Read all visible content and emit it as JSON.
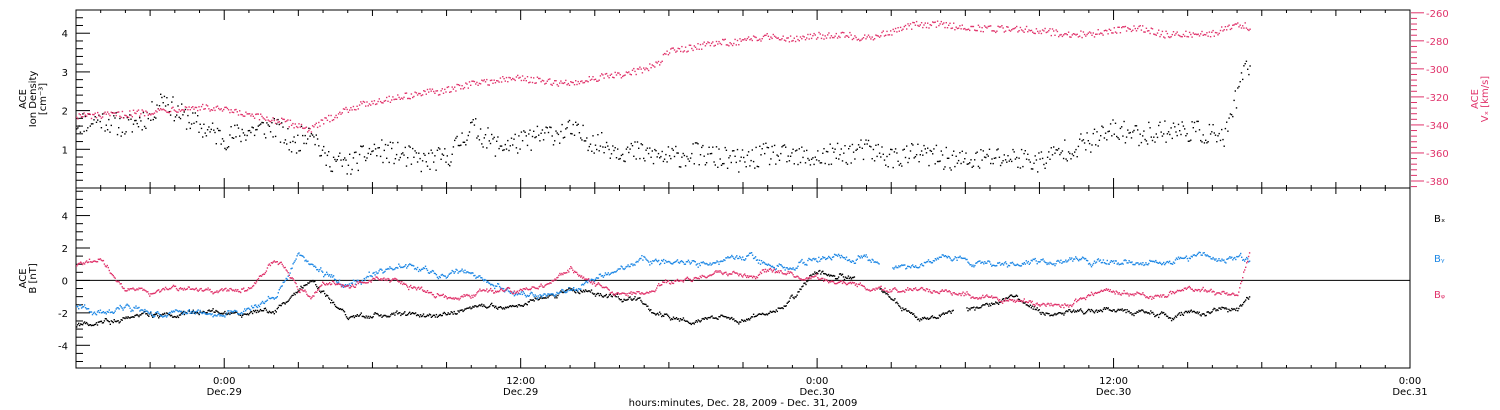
{
  "colors": {
    "density": "#000000",
    "velocity": "#e0336b",
    "bx": "#000000",
    "by": "#1e88e5",
    "bz": "#e0336b",
    "frame": "#000000"
  },
  "xaxis": {
    "title": "hours:minutes, Dec. 28, 2009 - Dec. 31, 2009",
    "range_hours": [
      -6,
      48
    ],
    "ticks": [
      {
        "t": 0,
        "time": "0:00",
        "day": "Dec.29"
      },
      {
        "t": 12,
        "time": "12:00",
        "day": "Dec.29"
      },
      {
        "t": 24,
        "time": "0:00",
        "day": "Dec.30"
      },
      {
        "t": 36,
        "time": "12:00",
        "day": "Dec.30"
      },
      {
        "t": 48,
        "time": "0:00",
        "day": "Dec.31"
      }
    ]
  },
  "chart_data": [
    {
      "type": "scatter",
      "panel": "top",
      "left_axis": {
        "label_lines": [
          "ACE",
          "Ion Density",
          "[cm⁻³]"
        ],
        "ylim": [
          0,
          4.6
        ],
        "ticks": [
          1,
          2,
          3,
          4
        ]
      },
      "right_axis": {
        "label_lines": [
          "ACE",
          "Vₓ [km/s]"
        ],
        "ylim": [
          -385,
          -258
        ],
        "ticks": [
          -380,
          -360,
          -340,
          -320,
          -300,
          -280,
          -260
        ]
      },
      "series": [
        {
          "key": "density",
          "axis": "left",
          "x": [
            -6,
            -5,
            -4,
            -3,
            -2.5,
            -2,
            -1,
            0,
            1,
            2,
            2.8,
            3.5,
            4,
            5,
            6,
            7,
            8,
            9,
            10,
            11,
            12,
            13,
            14,
            15,
            16,
            17,
            18,
            19,
            20,
            21,
            22,
            23,
            24,
            25,
            26,
            27,
            28,
            29,
            30,
            31,
            32,
            33,
            34,
            35,
            36,
            37,
            38,
            39,
            40,
            40.5,
            41,
            41.5
          ],
          "y": [
            1.7,
            1.8,
            1.6,
            1.9,
            2.4,
            2.0,
            1.6,
            1.3,
            1.5,
            1.6,
            1.1,
            1.6,
            0.8,
            0.6,
            1.0,
            0.9,
            0.7,
            0.8,
            1.6,
            1.1,
            1.2,
            1.4,
            1.5,
            1.2,
            1.0,
            0.9,
            0.8,
            0.9,
            0.8,
            0.7,
            0.9,
            0.8,
            0.8,
            0.9,
            1.0,
            0.8,
            0.9,
            0.8,
            0.7,
            0.8,
            0.8,
            0.7,
            1.0,
            1.2,
            1.5,
            1.4,
            1.5,
            1.5,
            1.4,
            1.3,
            2.5,
            3.3
          ],
          "noise": 0.3
        },
        {
          "key": "velocity",
          "axis": "right",
          "x": [
            -6,
            -5,
            -4,
            -3,
            -2,
            -1,
            0,
            1,
            2,
            3,
            3.5,
            4,
            5,
            6,
            7,
            8,
            9,
            10,
            11,
            12,
            13,
            14,
            15,
            16,
            17,
            17.5,
            18,
            19,
            20,
            21,
            22,
            23,
            24,
            25,
            26,
            27,
            28,
            29,
            30,
            31,
            32,
            33,
            34,
            35,
            36,
            37,
            38,
            39,
            40,
            41,
            41.5
          ],
          "y": [
            -333,
            -333,
            -332,
            -330,
            -328,
            -327,
            -329,
            -333,
            -336,
            -340,
            -343,
            -337,
            -328,
            -323,
            -320,
            -317,
            -315,
            -310,
            -308,
            -306,
            -309,
            -310,
            -306,
            -304,
            -300,
            -296,
            -287,
            -284,
            -281,
            -280,
            -276,
            -278,
            -276,
            -275,
            -278,
            -273,
            -268,
            -268,
            -270,
            -271,
            -271,
            -272,
            -275,
            -275,
            -272,
            -270,
            -275,
            -275,
            -274,
            -268,
            -270
          ],
          "noise": 2.5
        }
      ]
    },
    {
      "type": "line",
      "panel": "bottom",
      "axis": {
        "label_lines": [
          "ACE",
          "B [nT]"
        ],
        "ylim": [
          -5.4,
          5.7
        ],
        "ticks": [
          -4,
          -2,
          0,
          2,
          4
        ]
      },
      "zero_line": 0,
      "series": [
        {
          "key": "bx",
          "name": "Bₓ",
          "x": [
            -6,
            -5,
            -4,
            -3,
            -2,
            -1,
            0,
            1,
            2,
            3,
            3.5,
            4,
            5,
            6,
            7,
            8,
            9,
            10,
            11,
            12,
            13,
            14,
            15,
            16,
            17,
            18,
            19,
            20,
            21,
            22,
            23,
            24,
            25,
            26,
            27,
            28,
            29,
            30,
            31,
            32,
            33,
            34,
            35,
            36,
            37,
            38,
            39,
            40,
            41,
            41.5
          ],
          "y": [
            -2.8,
            -2.5,
            -2.3,
            -2.0,
            -2.1,
            -2.0,
            -1.9,
            -2.0,
            -1.8,
            -0.5,
            0.1,
            -0.8,
            -2.2,
            -2.2,
            -2.0,
            -2.2,
            -2.1,
            -1.8,
            -1.6,
            -1.5,
            -1.0,
            -0.6,
            -0.8,
            -1.0,
            -1.3,
            -2.4,
            -2.3,
            -2.4,
            -2.3,
            -1.8,
            -1.0,
            0.5,
            0.3,
            0.0,
            -1.0,
            -2.3,
            -2.0,
            -1.8,
            -1.5,
            -1.0,
            -2.0,
            -1.9,
            -1.8,
            -1.7,
            -1.9,
            -2.1,
            -2.0,
            -1.9,
            -1.8,
            -1.0
          ],
          "noise": 0.2,
          "gaps": [
            [
              25.5,
              26.5
            ],
            [
              29.5,
              30.0
            ]
          ]
        },
        {
          "key": "by",
          "name": "Bᵧ",
          "x": [
            -6,
            -5,
            -4,
            -3,
            -2,
            -1,
            0,
            1,
            2,
            3,
            3.5,
            4,
            5,
            6,
            7,
            8,
            9,
            10,
            11,
            12,
            13,
            14,
            15,
            16,
            17,
            18,
            19,
            20,
            21,
            22,
            23,
            24,
            25,
            26,
            27,
            28,
            29,
            30,
            31,
            32,
            33,
            34,
            35,
            36,
            37,
            38,
            39,
            40,
            41,
            41.5
          ],
          "y": [
            -1.5,
            -2.0,
            -1.5,
            -2.3,
            -2.0,
            -1.8,
            -2.1,
            -1.5,
            -1.0,
            1.8,
            1.0,
            0.5,
            -0.2,
            0.5,
            1.0,
            0.8,
            0.5,
            0.5,
            -0.3,
            -0.8,
            -0.8,
            -0.5,
            0.3,
            0.8,
            1.3,
            1.0,
            1.2,
            1.0,
            1.4,
            1.2,
            1.0,
            1.5,
            1.3,
            1.5,
            1.0,
            0.9,
            1.4,
            1.3,
            1.0,
            1.0,
            1.1,
            1.3,
            1.2,
            1.3,
            1.0,
            1.2,
            1.4,
            1.5,
            1.6,
            1.2
          ],
          "noise": 0.25,
          "gaps": [
            [
              26.5,
              27.0
            ]
          ]
        },
        {
          "key": "bz",
          "name": "Bᵩ",
          "x": [
            -6,
            -5,
            -4,
            -3,
            -2,
            -1,
            0,
            1,
            2,
            3,
            3.5,
            4,
            5,
            6,
            7,
            8,
            9,
            10,
            11,
            12,
            13,
            14,
            15,
            16,
            17,
            18,
            19,
            20,
            21,
            22,
            23,
            24,
            25,
            26,
            27,
            28,
            29,
            30,
            31,
            32,
            33,
            34,
            35,
            36,
            37,
            38,
            39,
            40,
            41,
            41.5
          ],
          "y": [
            1.0,
            1.3,
            -0.5,
            -0.8,
            -0.3,
            -0.5,
            -0.8,
            -0.5,
            1.5,
            -0.5,
            -1.0,
            0.0,
            -0.3,
            0.2,
            0.0,
            -0.5,
            -1.0,
            -1.0,
            -0.6,
            -0.6,
            -0.4,
            0.8,
            -0.3,
            -0.8,
            -0.6,
            0.0,
            0.3,
            0.5,
            0.3,
            0.6,
            0.4,
            0.2,
            0.0,
            -0.3,
            -0.6,
            -0.5,
            -0.6,
            -0.8,
            -1.0,
            -1.2,
            -1.5,
            -1.4,
            -0.8,
            -0.5,
            -0.8,
            -0.9,
            -0.6,
            -0.7,
            -0.8,
            2.0
          ],
          "noise": 0.2,
          "gaps": []
        }
      ]
    }
  ]
}
